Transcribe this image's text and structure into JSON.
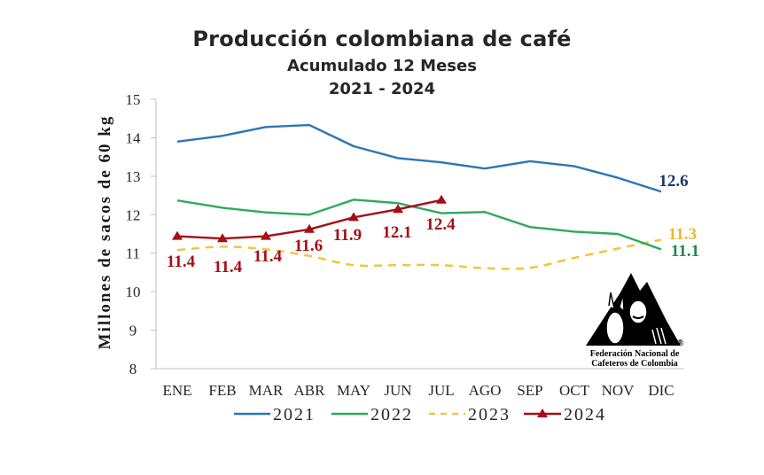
{
  "header": {
    "title": "Producción colombiana de café",
    "subtitle": "Acumulado 12 Meses",
    "years": "2021 - 2024"
  },
  "logo": {
    "line1": "Federación Nacional de",
    "line2": "Cafeteros  de  Colombia",
    "registered": "®"
  },
  "colors": {
    "2021": "#2E75B6",
    "2022": "#2EAA5C",
    "2023": "#F2C53D",
    "2024": "#A50F15",
    "label_2021": "#1F3864",
    "label_2022": "#1E8C4A",
    "label_2023": "#E8B92F",
    "label_2024": "#A50F15",
    "axis": "#BFBFBF"
  },
  "chart_data": {
    "type": "line",
    "title": "Producción colombiana de café",
    "subtitle": "Acumulado 12 Meses 2021 - 2024",
    "xlabel": "",
    "ylabel": "Millones de sacos de 60 kg",
    "ylim": [
      8,
      15
    ],
    "yticks": [
      8,
      9,
      10,
      11,
      12,
      13,
      14,
      15
    ],
    "grid": false,
    "legend_position": "bottom",
    "categories": [
      "ENE",
      "FEB",
      "MAR",
      "ABR",
      "MAY",
      "JUN",
      "JUL",
      "AGO",
      "SEP",
      "OCT",
      "NOV",
      "DIC"
    ],
    "series": [
      {
        "name": "2021",
        "style": "solid",
        "values": [
          13.9,
          14.05,
          14.28,
          14.33,
          13.78,
          13.47,
          13.36,
          13.2,
          13.39,
          13.26,
          12.96,
          12.6
        ],
        "labels": [
          {
            "index": 11,
            "text": "12.6"
          }
        ]
      },
      {
        "name": "2022",
        "style": "solid",
        "values": [
          12.37,
          12.18,
          12.06,
          12.0,
          12.39,
          12.3,
          12.04,
          12.07,
          11.68,
          11.56,
          11.5,
          11.1
        ],
        "labels": [
          {
            "index": 11,
            "text": "11.1"
          }
        ]
      },
      {
        "name": "2023",
        "style": "dashed",
        "values": [
          11.08,
          11.17,
          11.1,
          10.93,
          10.69,
          10.69,
          10.69,
          10.61,
          10.62,
          10.88,
          11.12,
          11.35
        ],
        "labels": [
          {
            "index": 11,
            "text": "11.3"
          }
        ]
      },
      {
        "name": "2024",
        "style": "solid-triangle-markers",
        "values": [
          11.44,
          11.38,
          11.44,
          11.62,
          11.93,
          12.14,
          12.38
        ],
        "labels": [
          {
            "index": 0,
            "text": "11.4"
          },
          {
            "index": 1,
            "text": "11.4"
          },
          {
            "index": 2,
            "text": "11.4"
          },
          {
            "index": 3,
            "text": "11.6"
          },
          {
            "index": 4,
            "text": "11.9"
          },
          {
            "index": 5,
            "text": "12.1"
          },
          {
            "index": 6,
            "text": "12.4"
          }
        ]
      }
    ]
  }
}
